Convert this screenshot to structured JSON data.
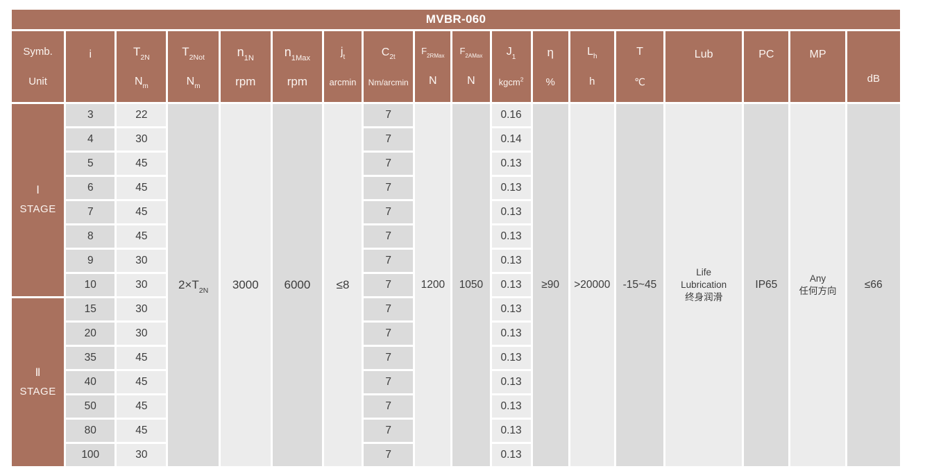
{
  "title": "MVBR-060",
  "colors": {
    "header_brown": "#A9715E",
    "cell_dark": "#DBDBDB",
    "cell_light": "#ECECEC",
    "text_dark": "#3C3C3C",
    "text_light": "#FBF4F0"
  },
  "header": {
    "columns": [
      {
        "base": "Symb.",
        "sub": "",
        "unit_base": "Unit",
        "unit_sub": "",
        "unit_sup": ""
      },
      {
        "base": "i",
        "sub": "",
        "unit_base": "",
        "unit_sub": "",
        "unit_sup": ""
      },
      {
        "base": "T",
        "sub": "2N",
        "unit_base": "N",
        "unit_sub": "m",
        "unit_sup": ""
      },
      {
        "base": "T",
        "sub": "2Not",
        "unit_base": "N",
        "unit_sub": "m",
        "unit_sup": ""
      },
      {
        "base": "n",
        "sub": "1N",
        "unit_base": "rpm",
        "unit_sub": "",
        "unit_sup": ""
      },
      {
        "base": "n",
        "sub": "1Max",
        "unit_base": "rpm",
        "unit_sub": "",
        "unit_sup": ""
      },
      {
        "base": "j",
        "sub": "t",
        "unit_base": "arcmin",
        "unit_sub": "",
        "unit_sup": ""
      },
      {
        "base": "C",
        "sub": "2t",
        "unit_base": "Nm/arcmin",
        "unit_sub": "",
        "unit_sup": ""
      },
      {
        "base": "F",
        "sub": "2RMax",
        "unit_base": "N",
        "unit_sub": "",
        "unit_sup": ""
      },
      {
        "base": "F",
        "sub": "2AMax",
        "unit_base": "N",
        "unit_sub": "",
        "unit_sup": ""
      },
      {
        "base": "J",
        "sub": "1",
        "unit_base": "kgcm",
        "unit_sub": "",
        "unit_sup": "2"
      },
      {
        "base": "η",
        "sub": "",
        "unit_base": "%",
        "unit_sub": "",
        "unit_sup": ""
      },
      {
        "base": "L",
        "sub": "h",
        "unit_base": "h",
        "unit_sub": "",
        "unit_sup": ""
      },
      {
        "base": "T",
        "sub": "",
        "unit_base": "℃",
        "unit_sub": "",
        "unit_sup": ""
      },
      {
        "base": "Lub",
        "sub": "",
        "unit_base": "",
        "unit_sub": "",
        "unit_sup": ""
      },
      {
        "base": "PC",
        "sub": "",
        "unit_base": "",
        "unit_sub": "",
        "unit_sup": ""
      },
      {
        "base": "MP",
        "sub": "",
        "unit_base": "",
        "unit_sub": "",
        "unit_sup": ""
      },
      {
        "base": "",
        "sub": "",
        "unit_base": "dB",
        "unit_sub": "",
        "unit_sup": ""
      }
    ]
  },
  "body": {
    "stages": [
      {
        "numeral": "Ⅰ",
        "label": "STAGE",
        "rows": 8
      },
      {
        "numeral": "Ⅱ",
        "label": "STAGE",
        "rows": 7
      }
    ],
    "rows": [
      {
        "i": "3",
        "t2n": "22",
        "c2t": "7",
        "j1": "0.16"
      },
      {
        "i": "4",
        "t2n": "30",
        "c2t": "7",
        "j1": "0.14"
      },
      {
        "i": "5",
        "t2n": "45",
        "c2t": "7",
        "j1": "0.13"
      },
      {
        "i": "6",
        "t2n": "45",
        "c2t": "7",
        "j1": "0.13"
      },
      {
        "i": "7",
        "t2n": "45",
        "c2t": "7",
        "j1": "0.13"
      },
      {
        "i": "8",
        "t2n": "45",
        "c2t": "7",
        "j1": "0.13"
      },
      {
        "i": "9",
        "t2n": "30",
        "c2t": "7",
        "j1": "0.13"
      },
      {
        "i": "10",
        "t2n": "30",
        "c2t": "7",
        "j1": "0.13"
      },
      {
        "i": "15",
        "t2n": "30",
        "c2t": "7",
        "j1": "0.13"
      },
      {
        "i": "20",
        "t2n": "30",
        "c2t": "7",
        "j1": "0.13"
      },
      {
        "i": "35",
        "t2n": "45",
        "c2t": "7",
        "j1": "0.13"
      },
      {
        "i": "40",
        "t2n": "45",
        "c2t": "7",
        "j1": "0.13"
      },
      {
        "i": "50",
        "t2n": "45",
        "c2t": "7",
        "j1": "0.13"
      },
      {
        "i": "80",
        "t2n": "45",
        "c2t": "7",
        "j1": "0.13"
      },
      {
        "i": "100",
        "t2n": "30",
        "c2t": "7",
        "j1": "0.13"
      }
    ],
    "merged": {
      "t2not_base": "2×T",
      "t2not_sub": "2N",
      "n1n": "3000",
      "n1max": "6000",
      "jt": "≤8",
      "f2rmax": "1200",
      "f2amax": "1050",
      "eta": "≥90",
      "lh": ">20000",
      "t": "-15~45",
      "lub_lines": [
        "Life",
        "Lubrication",
        "终身润滑"
      ],
      "pc": "IP65",
      "mp_lines": [
        "Any",
        "任何方向"
      ],
      "db": "≤66"
    }
  }
}
